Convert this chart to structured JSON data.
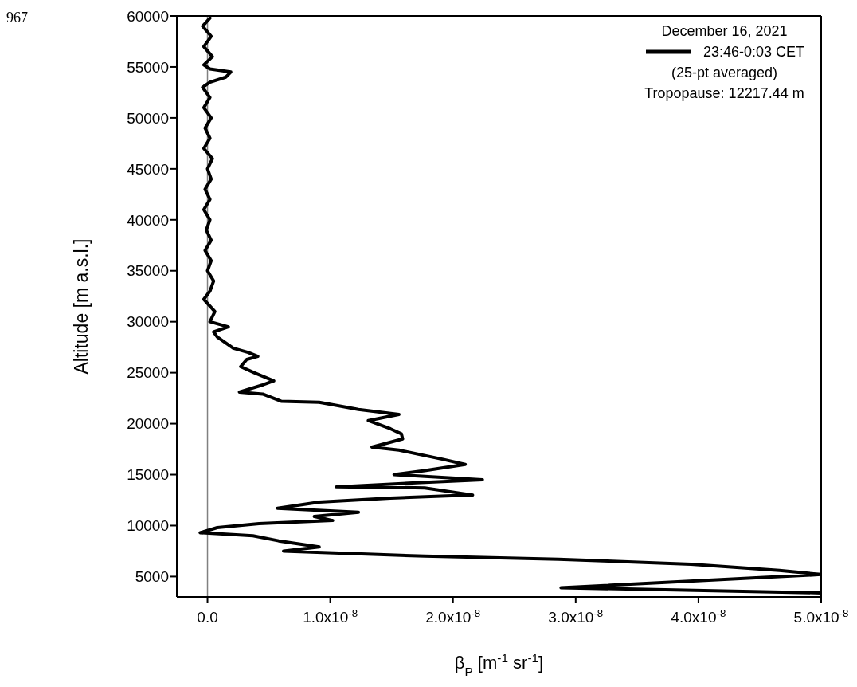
{
  "chart_data": {
    "type": "line",
    "xlabel": "β$_{P}$ [m$^{-1}$ sr$^{-1}$]",
    "ylabel": "Altitude [m a.s.l.]",
    "legend_title": "December 16, 2021",
    "legend": "top right",
    "marker": "none",
    "line_style": "solid",
    "annotations": [
      "(25-pt averaged)",
      "Tropopause: 12217.44 m",
      "967"
    ],
    "xlim": [
      -2.5e-09,
      5e-08
    ],
    "xticks": [
      {
        "value": 0,
        "label": "0.0"
      },
      {
        "value": 1e-08,
        "label": "1.0x10$^{-8}$"
      },
      {
        "value": 2e-08,
        "label": "2.0x10$^{-8}$"
      },
      {
        "value": 3e-08,
        "label": "3.0x10$^{-8}$"
      },
      {
        "value": 4e-08,
        "label": "4.0x10$^{-8}$"
      },
      {
        "value": 5e-08,
        "label": "5.0x10$^{-8}$"
      }
    ],
    "ylim": [
      3000,
      60000
    ],
    "yticks": [
      5000,
      10000,
      15000,
      20000,
      25000,
      30000,
      35000,
      40000,
      45000,
      50000,
      55000,
      60000
    ],
    "ref_lines": [
      {
        "axis": "x",
        "value": 0,
        "color": "#808080"
      }
    ],
    "series": [
      {
        "name": "23:46-0:03 CET",
        "color": "#000000",
        "x": [
          2e-10,
          -4e-10,
          3e-10,
          -3e-10,
          4e-10,
          -3e-10,
          2e-10,
          1.9e-09,
          1.5e-09,
          2e-10,
          -4e-10,
          2e-10,
          -3e-10,
          3e-10,
          -2e-10,
          2e-10,
          -3e-10,
          4e-10,
          0,
          3e-10,
          -2e-10,
          2e-10,
          -3e-10,
          2e-10,
          -1e-10,
          3e-10,
          -2e-10,
          3e-10,
          0,
          5e-10,
          2e-10,
          -3e-10,
          6e-10,
          2e-10,
          1.7e-09,
          5e-10,
          8e-10,
          2.1e-09,
          3.3e-09,
          4.1e-09,
          3.2e-09,
          2.7e-09,
          3.8e-09,
          5.4e-09,
          4.5e-09,
          2.6e-09,
          4.5e-09,
          6e-09,
          9.1e-09,
          1.23e-08,
          1.56e-08,
          1.31e-08,
          1.49e-08,
          1.58e-08,
          1.59e-08,
          1.34e-08,
          1.56e-08,
          1.92e-08,
          2.1e-08,
          1.77e-08,
          1.52e-08,
          2.24e-08,
          1.7e-08,
          1.05e-08,
          1.77e-08,
          2.16e-08,
          1.49e-08,
          9.1e-09,
          5.7e-09,
          1.23e-08,
          8.7e-09,
          1.02e-08,
          4.2e-09,
          8e-10,
          -6e-10,
          3.7e-09,
          5.8e-09,
          9.1e-09,
          6.2e-09,
          1.77e-08,
          2.86e-08,
          3.94e-08,
          4.66e-08,
          5e-08,
          2.88e-08,
          5e-08
        ],
        "values": [
          59800,
          59000,
          58000,
          57000,
          56000,
          55200,
          54800,
          54500,
          54000,
          53500,
          53000,
          52000,
          51000,
          50000,
          49000,
          48000,
          47000,
          46000,
          45000,
          44000,
          43000,
          42000,
          41000,
          40000,
          39000,
          38000,
          37000,
          36000,
          35000,
          34000,
          33000,
          32200,
          31000,
          30000,
          29500,
          29000,
          28500,
          27400,
          27000,
          26600,
          26300,
          25600,
          25000,
          24200,
          23800,
          23100,
          22900,
          22200,
          22100,
          21400,
          20900,
          20300,
          19500,
          19000,
          18500,
          17700,
          17400,
          16500,
          16000,
          15400,
          15000,
          14500,
          14200,
          13800,
          13700,
          13000,
          12700,
          12300,
          11700,
          11300,
          10900,
          10500,
          10200,
          9800,
          9300,
          9000,
          8500,
          7900,
          7500,
          7000,
          6700,
          6200,
          5600,
          5200,
          3900,
          3400
        ]
      }
    ]
  }
}
